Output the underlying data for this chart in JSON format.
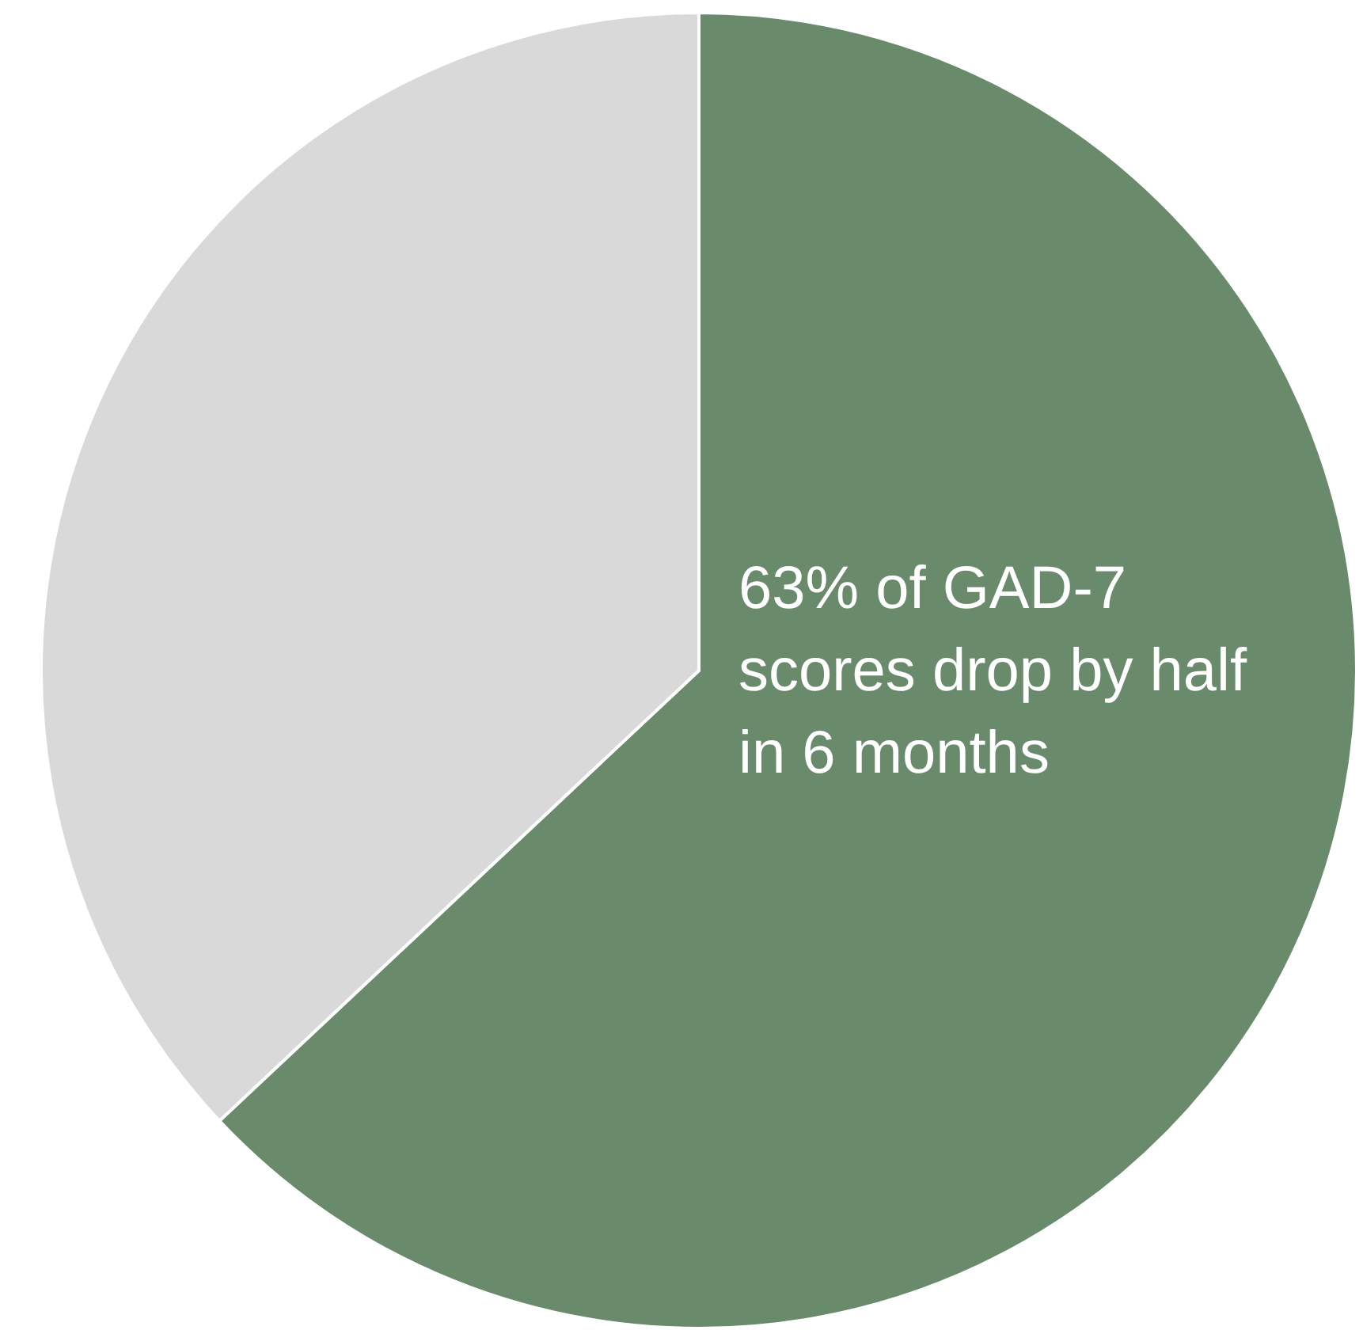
{
  "chart_data": {
    "type": "pie",
    "categories": [
      null,
      null
    ],
    "values": [
      63,
      37
    ],
    "colors": [
      "#6a8a6c",
      "#d9d9d9"
    ],
    "legend": false,
    "annotations": [
      "63% of GAD-7 scores drop by half in 6 months"
    ]
  }
}
